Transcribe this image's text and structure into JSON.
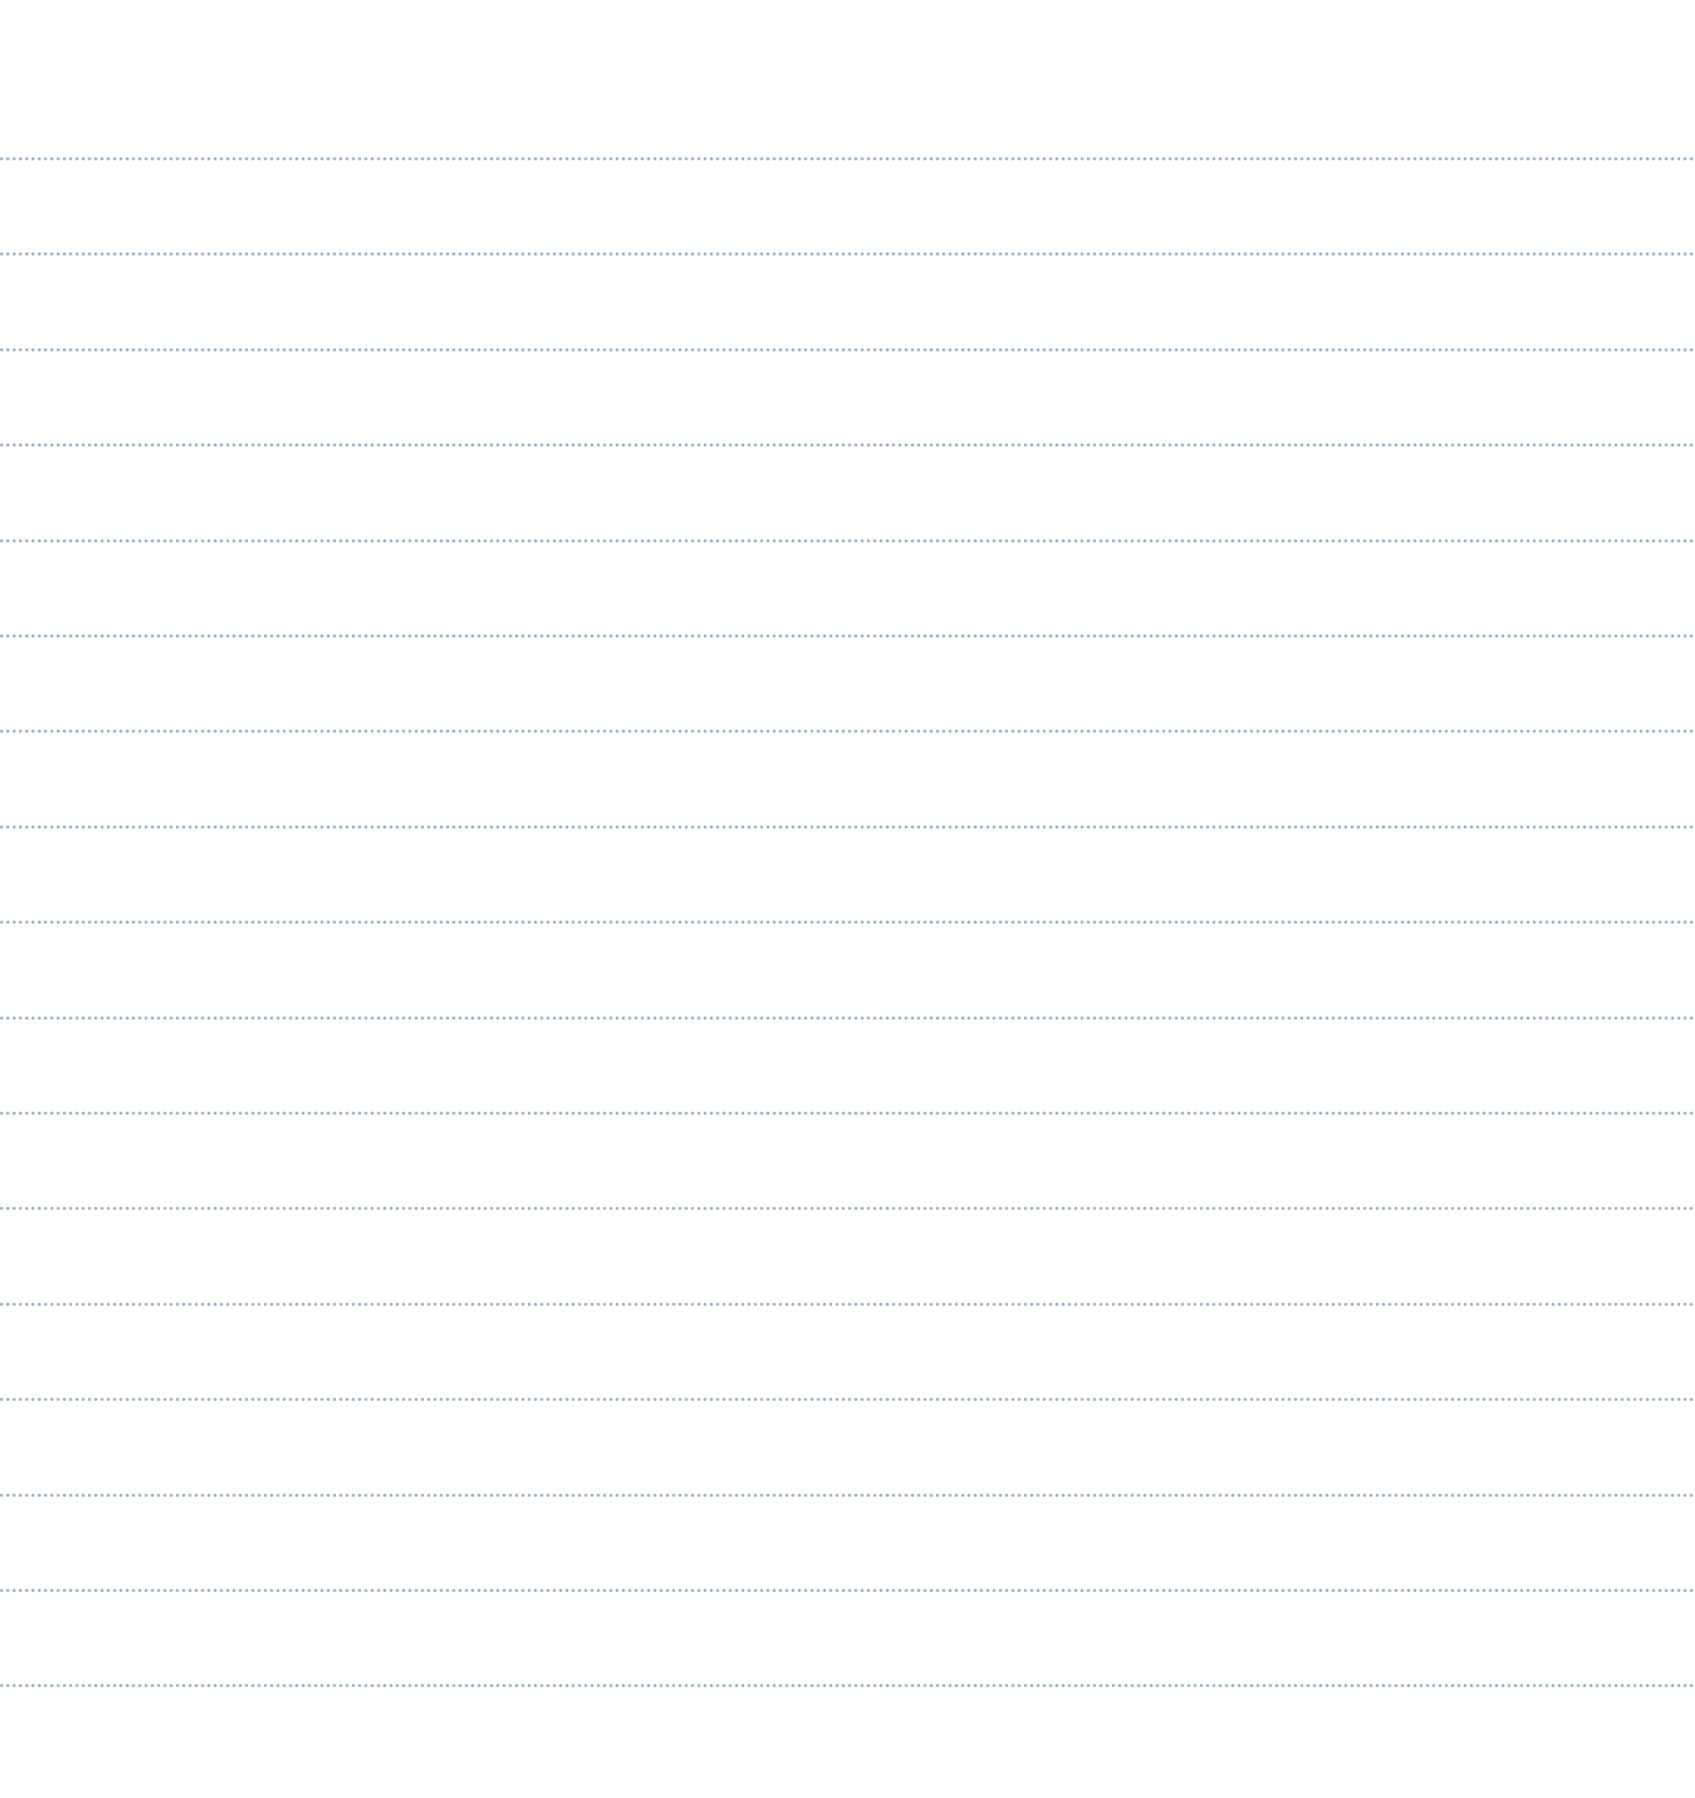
{
  "page": {
    "background_color": "#ffffff",
    "rule_color": "#a3b4c6",
    "rule_style": "dotted",
    "rule_count": 17
  }
}
